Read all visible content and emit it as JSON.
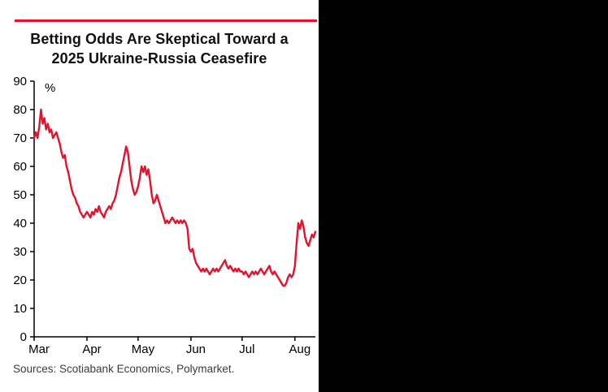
{
  "chart": {
    "title_line1": "Betting Odds Are Skeptical Toward a",
    "title_line2": "2025 Ukraine-Russia Ceasefire"
  },
  "footer": {
    "sources": "Sources: Scotiabank Economics, Polymarket."
  },
  "colors": {
    "accent_red": "#e8112d",
    "axis": "#000000",
    "title_text": "#111111",
    "sources_text": "#3c3c3c",
    "panel_right": "#000000",
    "background": "#ffffff"
  },
  "chart_data": {
    "type": "line",
    "title": "Betting Odds Are Skeptical Toward a 2025 Ukraine-Russia Ceasefire",
    "xlabel": "",
    "ylabel": "%",
    "ylim": [
      0,
      90
    ],
    "y_ticks": [
      0,
      10,
      20,
      30,
      40,
      50,
      60,
      70,
      80,
      90
    ],
    "grid": false,
    "legend_position": "none",
    "x_unit": "days since Mar 1, 2025",
    "x_max": 165,
    "months": [
      {
        "label": "Mar",
        "day": 0
      },
      {
        "label": "Apr",
        "day": 31
      },
      {
        "label": "May",
        "day": 61
      },
      {
        "label": "Jun",
        "day": 92
      },
      {
        "label": "Jul",
        "day": 122
      },
      {
        "label": "Aug",
        "day": 153
      }
    ],
    "series": [
      {
        "name": "Betting odds of a 2025 Ukraine-Russia ceasefire (%)",
        "color": "#e8112d",
        "values": [
          70,
          72,
          70,
          74,
          80,
          75,
          77,
          73,
          75,
          72,
          73,
          70,
          71,
          72,
          70,
          68,
          65,
          63,
          64,
          60,
          58,
          55,
          52,
          50,
          49,
          47,
          46,
          44,
          43,
          42,
          43,
          44,
          43,
          42,
          44,
          43,
          45,
          44,
          46,
          44,
          43,
          42,
          44,
          45,
          46,
          45,
          47,
          48,
          50,
          53,
          56,
          58,
          61,
          64,
          67,
          65,
          60,
          55,
          52,
          50,
          51,
          53,
          56,
          60,
          58,
          60,
          57,
          59,
          55,
          50,
          47,
          48,
          50,
          48,
          46,
          44,
          42,
          40,
          41,
          40,
          41,
          42,
          41,
          40,
          41,
          40,
          41,
          40,
          41,
          40,
          38,
          31,
          30,
          31,
          28,
          26,
          25,
          24,
          23,
          24,
          23,
          24,
          23,
          22,
          23,
          24,
          23,
          24,
          23,
          24,
          25,
          26,
          27,
          25,
          24,
          25,
          24,
          23,
          24,
          23,
          24,
          23,
          23,
          22,
          23,
          22,
          21,
          22,
          23,
          22,
          23,
          22,
          23,
          24,
          23,
          22,
          23,
          24,
          25,
          23,
          22,
          23,
          22,
          21,
          20,
          19,
          18,
          18,
          19,
          21,
          22,
          21,
          22,
          25,
          33,
          40,
          38,
          41,
          39,
          35,
          33,
          32,
          34,
          36,
          35,
          37
        ]
      }
    ]
  }
}
